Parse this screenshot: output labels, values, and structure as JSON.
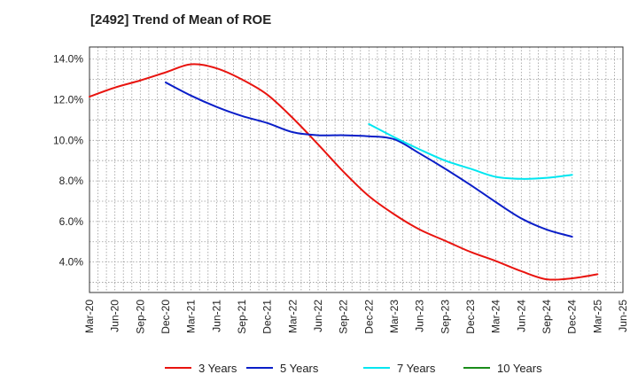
{
  "chart_data": {
    "type": "line",
    "title": "[2492]  Trend of Mean of ROE",
    "xlabel": "",
    "ylabel": "",
    "ylim": [
      2.5,
      14.6
    ],
    "y_ticks": [
      4.0,
      6.0,
      8.0,
      10.0,
      12.0,
      14.0
    ],
    "y_tick_labels": [
      "4.0%",
      "6.0%",
      "8.0%",
      "10.0%",
      "12.0%",
      "14.0%"
    ],
    "x_ticks": [
      "Mar-20",
      "Jun-20",
      "Sep-20",
      "Dec-20",
      "Mar-21",
      "Jun-21",
      "Sep-21",
      "Dec-21",
      "Mar-22",
      "Jun-22",
      "Sep-22",
      "Dec-22",
      "Mar-23",
      "Jun-23",
      "Sep-23",
      "Dec-23",
      "Mar-24",
      "Jun-24",
      "Sep-24",
      "Dec-24",
      "Mar-25",
      "Jun-25"
    ],
    "grid": true,
    "legend_position": "bottom",
    "series": [
      {
        "name": "3 Years",
        "color": "#e8140f",
        "x_start": 0,
        "values": [
          12.15,
          12.6,
          12.95,
          13.35,
          13.75,
          13.55,
          13.0,
          12.25,
          11.1,
          9.8,
          8.45,
          7.25,
          6.35,
          5.6,
          5.05,
          4.5,
          4.05,
          3.55,
          3.15,
          3.2,
          3.4
        ]
      },
      {
        "name": "5 Years",
        "color": "#0a1ec8",
        "x_start": 3,
        "values": [
          12.85,
          12.2,
          11.65,
          11.2,
          10.85,
          10.4,
          10.25,
          10.25,
          10.2,
          10.05,
          9.35,
          8.6,
          7.8,
          6.95,
          6.15,
          5.6,
          5.25
        ]
      },
      {
        "name": "7 Years",
        "color": "#00e6f0",
        "x_start": 11,
        "values": [
          10.8,
          10.15,
          9.55,
          9.0,
          8.6,
          8.2,
          8.1,
          8.15,
          8.3
        ]
      },
      {
        "name": "10 Years",
        "color": "#1a8c1a",
        "x_start": 0,
        "values": []
      }
    ]
  }
}
